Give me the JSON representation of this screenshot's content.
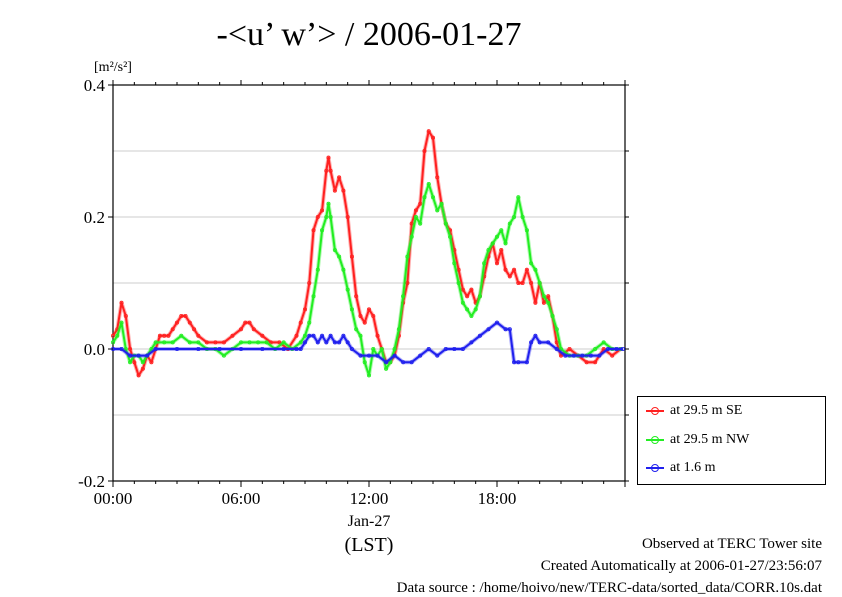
{
  "chart_data": {
    "type": "line",
    "title": "-<u’ w’> / 2006-01-27",
    "ylabel_unit": "[m²/s²]",
    "ylim": [
      -0.2,
      0.4
    ],
    "yticks": [
      "-0.2",
      "0.0",
      "0.2",
      "0.4"
    ],
    "yticks_values": [
      -0.2,
      0.0,
      0.2,
      0.4
    ],
    "xlim": [
      0,
      24
    ],
    "xticks": [
      "00:00",
      "06:00",
      "12:00",
      "18:00"
    ],
    "xticks_values": [
      0,
      6,
      12,
      18
    ],
    "x_date_label": "Jan-27",
    "x_axis_label": "(LST)",
    "grid": true,
    "legend_position": "bottom-right outside",
    "series": [
      {
        "name": "at 29.5 m SE",
        "color": "#ff2020",
        "points": [
          [
            0.0,
            0.02
          ],
          [
            0.2,
            0.03
          ],
          [
            0.4,
            0.07
          ],
          [
            0.6,
            0.05
          ],
          [
            0.8,
            0.0
          ],
          [
            1.0,
            -0.02
          ],
          [
            1.2,
            -0.04
          ],
          [
            1.4,
            -0.03
          ],
          [
            1.6,
            -0.01
          ],
          [
            1.8,
            -0.02
          ],
          [
            2.0,
            0.0
          ],
          [
            2.2,
            0.02
          ],
          [
            2.4,
            0.02
          ],
          [
            2.6,
            0.02
          ],
          [
            2.8,
            0.03
          ],
          [
            3.0,
            0.04
          ],
          [
            3.2,
            0.05
          ],
          [
            3.4,
            0.05
          ],
          [
            3.6,
            0.04
          ],
          [
            3.8,
            0.03
          ],
          [
            4.0,
            0.02
          ],
          [
            4.4,
            0.01
          ],
          [
            4.8,
            0.01
          ],
          [
            5.2,
            0.01
          ],
          [
            5.6,
            0.02
          ],
          [
            6.0,
            0.03
          ],
          [
            6.2,
            0.04
          ],
          [
            6.4,
            0.04
          ],
          [
            6.6,
            0.03
          ],
          [
            7.0,
            0.02
          ],
          [
            7.4,
            0.01
          ],
          [
            7.8,
            0.01
          ],
          [
            8.2,
            0.0
          ],
          [
            8.6,
            0.02
          ],
          [
            8.8,
            0.04
          ],
          [
            9.0,
            0.06
          ],
          [
            9.2,
            0.1
          ],
          [
            9.4,
            0.18
          ],
          [
            9.6,
            0.2
          ],
          [
            9.8,
            0.21
          ],
          [
            10.0,
            0.27
          ],
          [
            10.1,
            0.29
          ],
          [
            10.2,
            0.27
          ],
          [
            10.4,
            0.24
          ],
          [
            10.6,
            0.26
          ],
          [
            10.8,
            0.24
          ],
          [
            11.0,
            0.2
          ],
          [
            11.2,
            0.14
          ],
          [
            11.4,
            0.08
          ],
          [
            11.6,
            0.05
          ],
          [
            11.8,
            0.04
          ],
          [
            12.0,
            0.06
          ],
          [
            12.2,
            0.05
          ],
          [
            12.4,
            0.02
          ],
          [
            12.6,
            0.0
          ],
          [
            12.8,
            -0.02
          ],
          [
            13.0,
            -0.02
          ],
          [
            13.2,
            -0.01
          ],
          [
            13.4,
            0.02
          ],
          [
            13.6,
            0.07
          ],
          [
            13.8,
            0.1
          ],
          [
            14.0,
            0.19
          ],
          [
            14.2,
            0.21
          ],
          [
            14.4,
            0.22
          ],
          [
            14.6,
            0.3
          ],
          [
            14.8,
            0.33
          ],
          [
            15.0,
            0.32
          ],
          [
            15.2,
            0.26
          ],
          [
            15.4,
            0.22
          ],
          [
            15.6,
            0.19
          ],
          [
            15.8,
            0.18
          ],
          [
            16.0,
            0.15
          ],
          [
            16.2,
            0.12
          ],
          [
            16.4,
            0.09
          ],
          [
            16.6,
            0.08
          ],
          [
            16.8,
            0.09
          ],
          [
            17.0,
            0.07
          ],
          [
            17.2,
            0.08
          ],
          [
            17.4,
            0.11
          ],
          [
            17.6,
            0.14
          ],
          [
            17.8,
            0.16
          ],
          [
            18.0,
            0.13
          ],
          [
            18.2,
            0.15
          ],
          [
            18.4,
            0.12
          ],
          [
            18.6,
            0.11
          ],
          [
            18.8,
            0.12
          ],
          [
            19.0,
            0.1
          ],
          [
            19.2,
            0.1
          ],
          [
            19.4,
            0.12
          ],
          [
            19.6,
            0.1
          ],
          [
            19.8,
            0.07
          ],
          [
            20.0,
            0.1
          ],
          [
            20.2,
            0.07
          ],
          [
            20.4,
            0.08
          ],
          [
            20.6,
            0.05
          ],
          [
            20.8,
            0.01
          ],
          [
            21.0,
            -0.01
          ],
          [
            21.4,
            0.0
          ],
          [
            21.8,
            -0.01
          ],
          [
            22.2,
            -0.02
          ],
          [
            22.6,
            -0.02
          ],
          [
            23.0,
            0.0
          ],
          [
            23.4,
            -0.01
          ],
          [
            23.8,
            0.0
          ]
        ]
      },
      {
        "name": "at 29.5 m NW",
        "color": "#22ee22",
        "points": [
          [
            0.0,
            0.01
          ],
          [
            0.2,
            0.02
          ],
          [
            0.4,
            0.04
          ],
          [
            0.6,
            0.0
          ],
          [
            0.8,
            -0.02
          ],
          [
            1.0,
            -0.01
          ],
          [
            1.2,
            -0.01
          ],
          [
            1.4,
            -0.02
          ],
          [
            1.6,
            -0.01
          ],
          [
            1.8,
            0.0
          ],
          [
            2.0,
            0.01
          ],
          [
            2.4,
            0.01
          ],
          [
            2.8,
            0.01
          ],
          [
            3.2,
            0.02
          ],
          [
            3.6,
            0.01
          ],
          [
            4.0,
            0.01
          ],
          [
            4.4,
            0.0
          ],
          [
            4.8,
            0.0
          ],
          [
            5.2,
            -0.01
          ],
          [
            5.6,
            0.0
          ],
          [
            6.0,
            0.01
          ],
          [
            6.4,
            0.01
          ],
          [
            6.8,
            0.01
          ],
          [
            7.2,
            0.01
          ],
          [
            7.6,
            0.0
          ],
          [
            8.0,
            0.01
          ],
          [
            8.4,
            0.0
          ],
          [
            8.8,
            0.01
          ],
          [
            9.0,
            0.02
          ],
          [
            9.2,
            0.04
          ],
          [
            9.4,
            0.08
          ],
          [
            9.6,
            0.12
          ],
          [
            9.8,
            0.18
          ],
          [
            10.0,
            0.2
          ],
          [
            10.1,
            0.22
          ],
          [
            10.2,
            0.2
          ],
          [
            10.4,
            0.15
          ],
          [
            10.6,
            0.14
          ],
          [
            10.8,
            0.12
          ],
          [
            11.0,
            0.09
          ],
          [
            11.2,
            0.06
          ],
          [
            11.4,
            0.03
          ],
          [
            11.6,
            0.02
          ],
          [
            11.8,
            -0.02
          ],
          [
            12.0,
            -0.04
          ],
          [
            12.2,
            0.0
          ],
          [
            12.4,
            -0.01
          ],
          [
            12.6,
            0.0
          ],
          [
            12.8,
            -0.03
          ],
          [
            13.0,
            -0.02
          ],
          [
            13.2,
            0.0
          ],
          [
            13.4,
            0.03
          ],
          [
            13.6,
            0.08
          ],
          [
            13.8,
            0.14
          ],
          [
            14.0,
            0.17
          ],
          [
            14.2,
            0.2
          ],
          [
            14.4,
            0.19
          ],
          [
            14.6,
            0.23
          ],
          [
            14.8,
            0.25
          ],
          [
            15.0,
            0.23
          ],
          [
            15.2,
            0.21
          ],
          [
            15.4,
            0.22
          ],
          [
            15.6,
            0.19
          ],
          [
            15.8,
            0.17
          ],
          [
            16.0,
            0.13
          ],
          [
            16.2,
            0.1
          ],
          [
            16.4,
            0.07
          ],
          [
            16.6,
            0.06
          ],
          [
            16.8,
            0.05
          ],
          [
            17.0,
            0.06
          ],
          [
            17.2,
            0.08
          ],
          [
            17.4,
            0.13
          ],
          [
            17.6,
            0.15
          ],
          [
            17.8,
            0.16
          ],
          [
            18.0,
            0.17
          ],
          [
            18.2,
            0.18
          ],
          [
            18.4,
            0.16
          ],
          [
            18.6,
            0.19
          ],
          [
            18.8,
            0.2
          ],
          [
            19.0,
            0.23
          ],
          [
            19.2,
            0.2
          ],
          [
            19.4,
            0.18
          ],
          [
            19.6,
            0.13
          ],
          [
            19.8,
            0.12
          ],
          [
            20.0,
            0.1
          ],
          [
            20.2,
            0.08
          ],
          [
            20.4,
            0.07
          ],
          [
            20.6,
            0.05
          ],
          [
            20.8,
            0.03
          ],
          [
            21.0,
            0.0
          ],
          [
            21.4,
            -0.01
          ],
          [
            21.8,
            -0.01
          ],
          [
            22.2,
            -0.01
          ],
          [
            22.6,
            0.0
          ],
          [
            23.0,
            0.01
          ],
          [
            23.4,
            0.0
          ],
          [
            23.8,
            0.0
          ]
        ]
      },
      {
        "name": "at 1.6 m",
        "color": "#2020ee",
        "points": [
          [
            0.0,
            0.0
          ],
          [
            0.4,
            0.0
          ],
          [
            0.8,
            -0.01
          ],
          [
            1.2,
            -0.01
          ],
          [
            1.6,
            -0.01
          ],
          [
            2.0,
            0.0
          ],
          [
            3.0,
            0.0
          ],
          [
            4.0,
            0.0
          ],
          [
            5.0,
            0.0
          ],
          [
            6.0,
            0.0
          ],
          [
            7.0,
            0.0
          ],
          [
            8.0,
            0.0
          ],
          [
            8.6,
            0.0
          ],
          [
            8.8,
            0.0
          ],
          [
            9.0,
            0.01
          ],
          [
            9.2,
            0.02
          ],
          [
            9.4,
            0.02
          ],
          [
            9.6,
            0.01
          ],
          [
            9.8,
            0.02
          ],
          [
            10.0,
            0.01
          ],
          [
            10.2,
            0.02
          ],
          [
            10.4,
            0.01
          ],
          [
            10.6,
            0.01
          ],
          [
            10.8,
            0.02
          ],
          [
            11.0,
            0.01
          ],
          [
            11.2,
            0.0
          ],
          [
            11.6,
            -0.01
          ],
          [
            12.0,
            -0.01
          ],
          [
            12.4,
            -0.01
          ],
          [
            12.8,
            -0.02
          ],
          [
            13.2,
            -0.01
          ],
          [
            13.6,
            -0.02
          ],
          [
            14.0,
            -0.02
          ],
          [
            14.4,
            -0.01
          ],
          [
            14.8,
            0.0
          ],
          [
            15.2,
            -0.01
          ],
          [
            15.6,
            0.0
          ],
          [
            16.0,
            0.0
          ],
          [
            16.4,
            0.0
          ],
          [
            16.8,
            0.01
          ],
          [
            17.2,
            0.02
          ],
          [
            17.6,
            0.03
          ],
          [
            18.0,
            0.04
          ],
          [
            18.4,
            0.03
          ],
          [
            18.6,
            0.03
          ],
          [
            18.8,
            -0.02
          ],
          [
            19.0,
            -0.02
          ],
          [
            19.4,
            -0.02
          ],
          [
            19.6,
            0.01
          ],
          [
            19.8,
            0.02
          ],
          [
            20.0,
            0.01
          ],
          [
            20.4,
            0.01
          ],
          [
            20.8,
            0.0
          ],
          [
            21.2,
            -0.01
          ],
          [
            21.6,
            -0.01
          ],
          [
            22.0,
            -0.01
          ],
          [
            22.4,
            -0.01
          ],
          [
            22.8,
            -0.01
          ],
          [
            23.2,
            0.0
          ],
          [
            23.6,
            0.0
          ],
          [
            23.9,
            0.0
          ]
        ]
      }
    ]
  },
  "footer": {
    "line1": "Observed at TERC Tower site",
    "line2": "Created Automatically at 2006-01-27/23:56:07",
    "line3": "Data source : /home/hoivo/new/TERC-data/sorted_data/CORR.10s.dat"
  }
}
